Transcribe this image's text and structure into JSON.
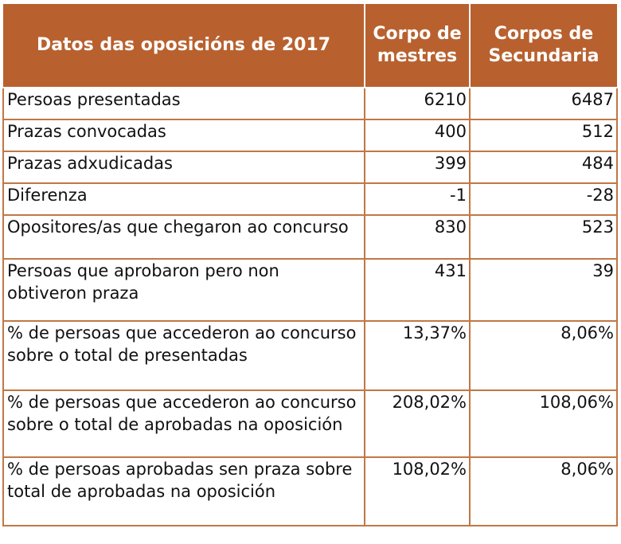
{
  "table": {
    "title": "Datos das oposicións de 2017",
    "columns": [
      "Corpo de mestres",
      "Corpos de Secundaria"
    ],
    "header_color": "#b8612f",
    "border_color": "#c07844",
    "rows": [
      {
        "label": "Persoas presentadas",
        "mestres": "6210",
        "secundaria": "6487"
      },
      {
        "label": "Prazas convocadas",
        "mestres": "400",
        "secundaria": "512"
      },
      {
        "label": "Prazas adxudicadas",
        "mestres": "399",
        "secundaria": "484"
      },
      {
        "label": "Diferenza",
        "mestres": "-1",
        "secundaria": "-28"
      },
      {
        "label": "Opositores/as que chegaron ao concurso",
        "mestres": "830",
        "secundaria": "523"
      },
      {
        "label": "Persoas que aprobaron pero non obtiveron praza",
        "mestres": "431",
        "secundaria": "39"
      },
      {
        "label": "% de persoas que accederon ao concurso sobre o total de presentadas",
        "mestres": "13,37%",
        "secundaria": "8,06%"
      },
      {
        "label": "% de persoas que accederon ao concurso sobre o total de aprobadas na oposición",
        "mestres": "208,02%",
        "secundaria": "108,06%"
      },
      {
        "label": "% de persoas aprobadas sen praza sobre total de aprobadas na oposición",
        "mestres": "108,02%",
        "secundaria": "8,06%"
      }
    ]
  }
}
